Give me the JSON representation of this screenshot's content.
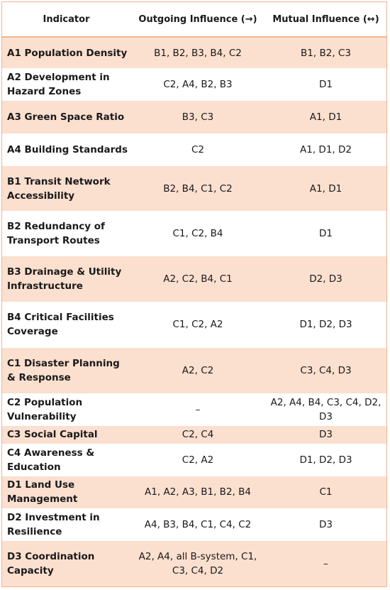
{
  "headers": {
    "indicator": "Indicator",
    "outgoing": "Outgoing Influence (→)",
    "mutual": "Mutual Influence (↔)"
  },
  "colors": {
    "band": "#fbdfcf",
    "border": "#f2b58f",
    "text": "#1a1a1a"
  },
  "rows": [
    {
      "indicator": "A1 Population Density",
      "outgoing": "B1, B2, B3, B4, C2",
      "mutual": "B1, B2, C3"
    },
    {
      "indicator": "A2 Development in Hazard Zones",
      "outgoing": "C2, A4, B2, B3",
      "mutual": "D1"
    },
    {
      "indicator": "A3 Green Space Ratio",
      "outgoing": "B3, C3",
      "mutual": "A1, D1"
    },
    {
      "indicator": "A4 Building Standards",
      "outgoing": "C2",
      "mutual": "A1, D1, D2"
    },
    {
      "indicator": "B1 Transit Network Accessibility",
      "outgoing": "B2, B4, C1, C2",
      "mutual": "A1, D1"
    },
    {
      "indicator": "B2 Redundancy of Transport Routes",
      "outgoing": "C1, C2, B4",
      "mutual": "D1"
    },
    {
      "indicator": "B3 Drainage & Utility Infrastructure",
      "outgoing": "A2, C2, B4, C1",
      "mutual": "D2, D3"
    },
    {
      "indicator": "B4 Critical Facilities Coverage",
      "outgoing": "C1, C2, A2",
      "mutual": "D1, D2, D3"
    },
    {
      "indicator": "C1 Disaster Planning & Response",
      "outgoing": "A2, C2",
      "mutual": "C3, C4, D3"
    },
    {
      "indicator": "C2 Population Vulnerability",
      "outgoing": "–",
      "mutual": "A2, A4, B4, C3, C4, D2, D3"
    },
    {
      "indicator": "C3 Social Capital",
      "outgoing": "C2, C4",
      "mutual": "D3"
    },
    {
      "indicator": "C4 Awareness & Education",
      "outgoing": "C2, A2",
      "mutual": "D1, D2, D3"
    },
    {
      "indicator": "D1 Land Use Management",
      "outgoing": "A1, A2, A3, B1, B2, B4",
      "mutual": "C1"
    },
    {
      "indicator": "D2 Investment in Resilience",
      "outgoing": "A4, B3, B4, C1, C4, C2",
      "mutual": "D3"
    },
    {
      "indicator": "D3 Coordination Capacity",
      "outgoing": "A2, A4, all B-system, C1, C3, C4, D2",
      "mutual": "–"
    }
  ]
}
